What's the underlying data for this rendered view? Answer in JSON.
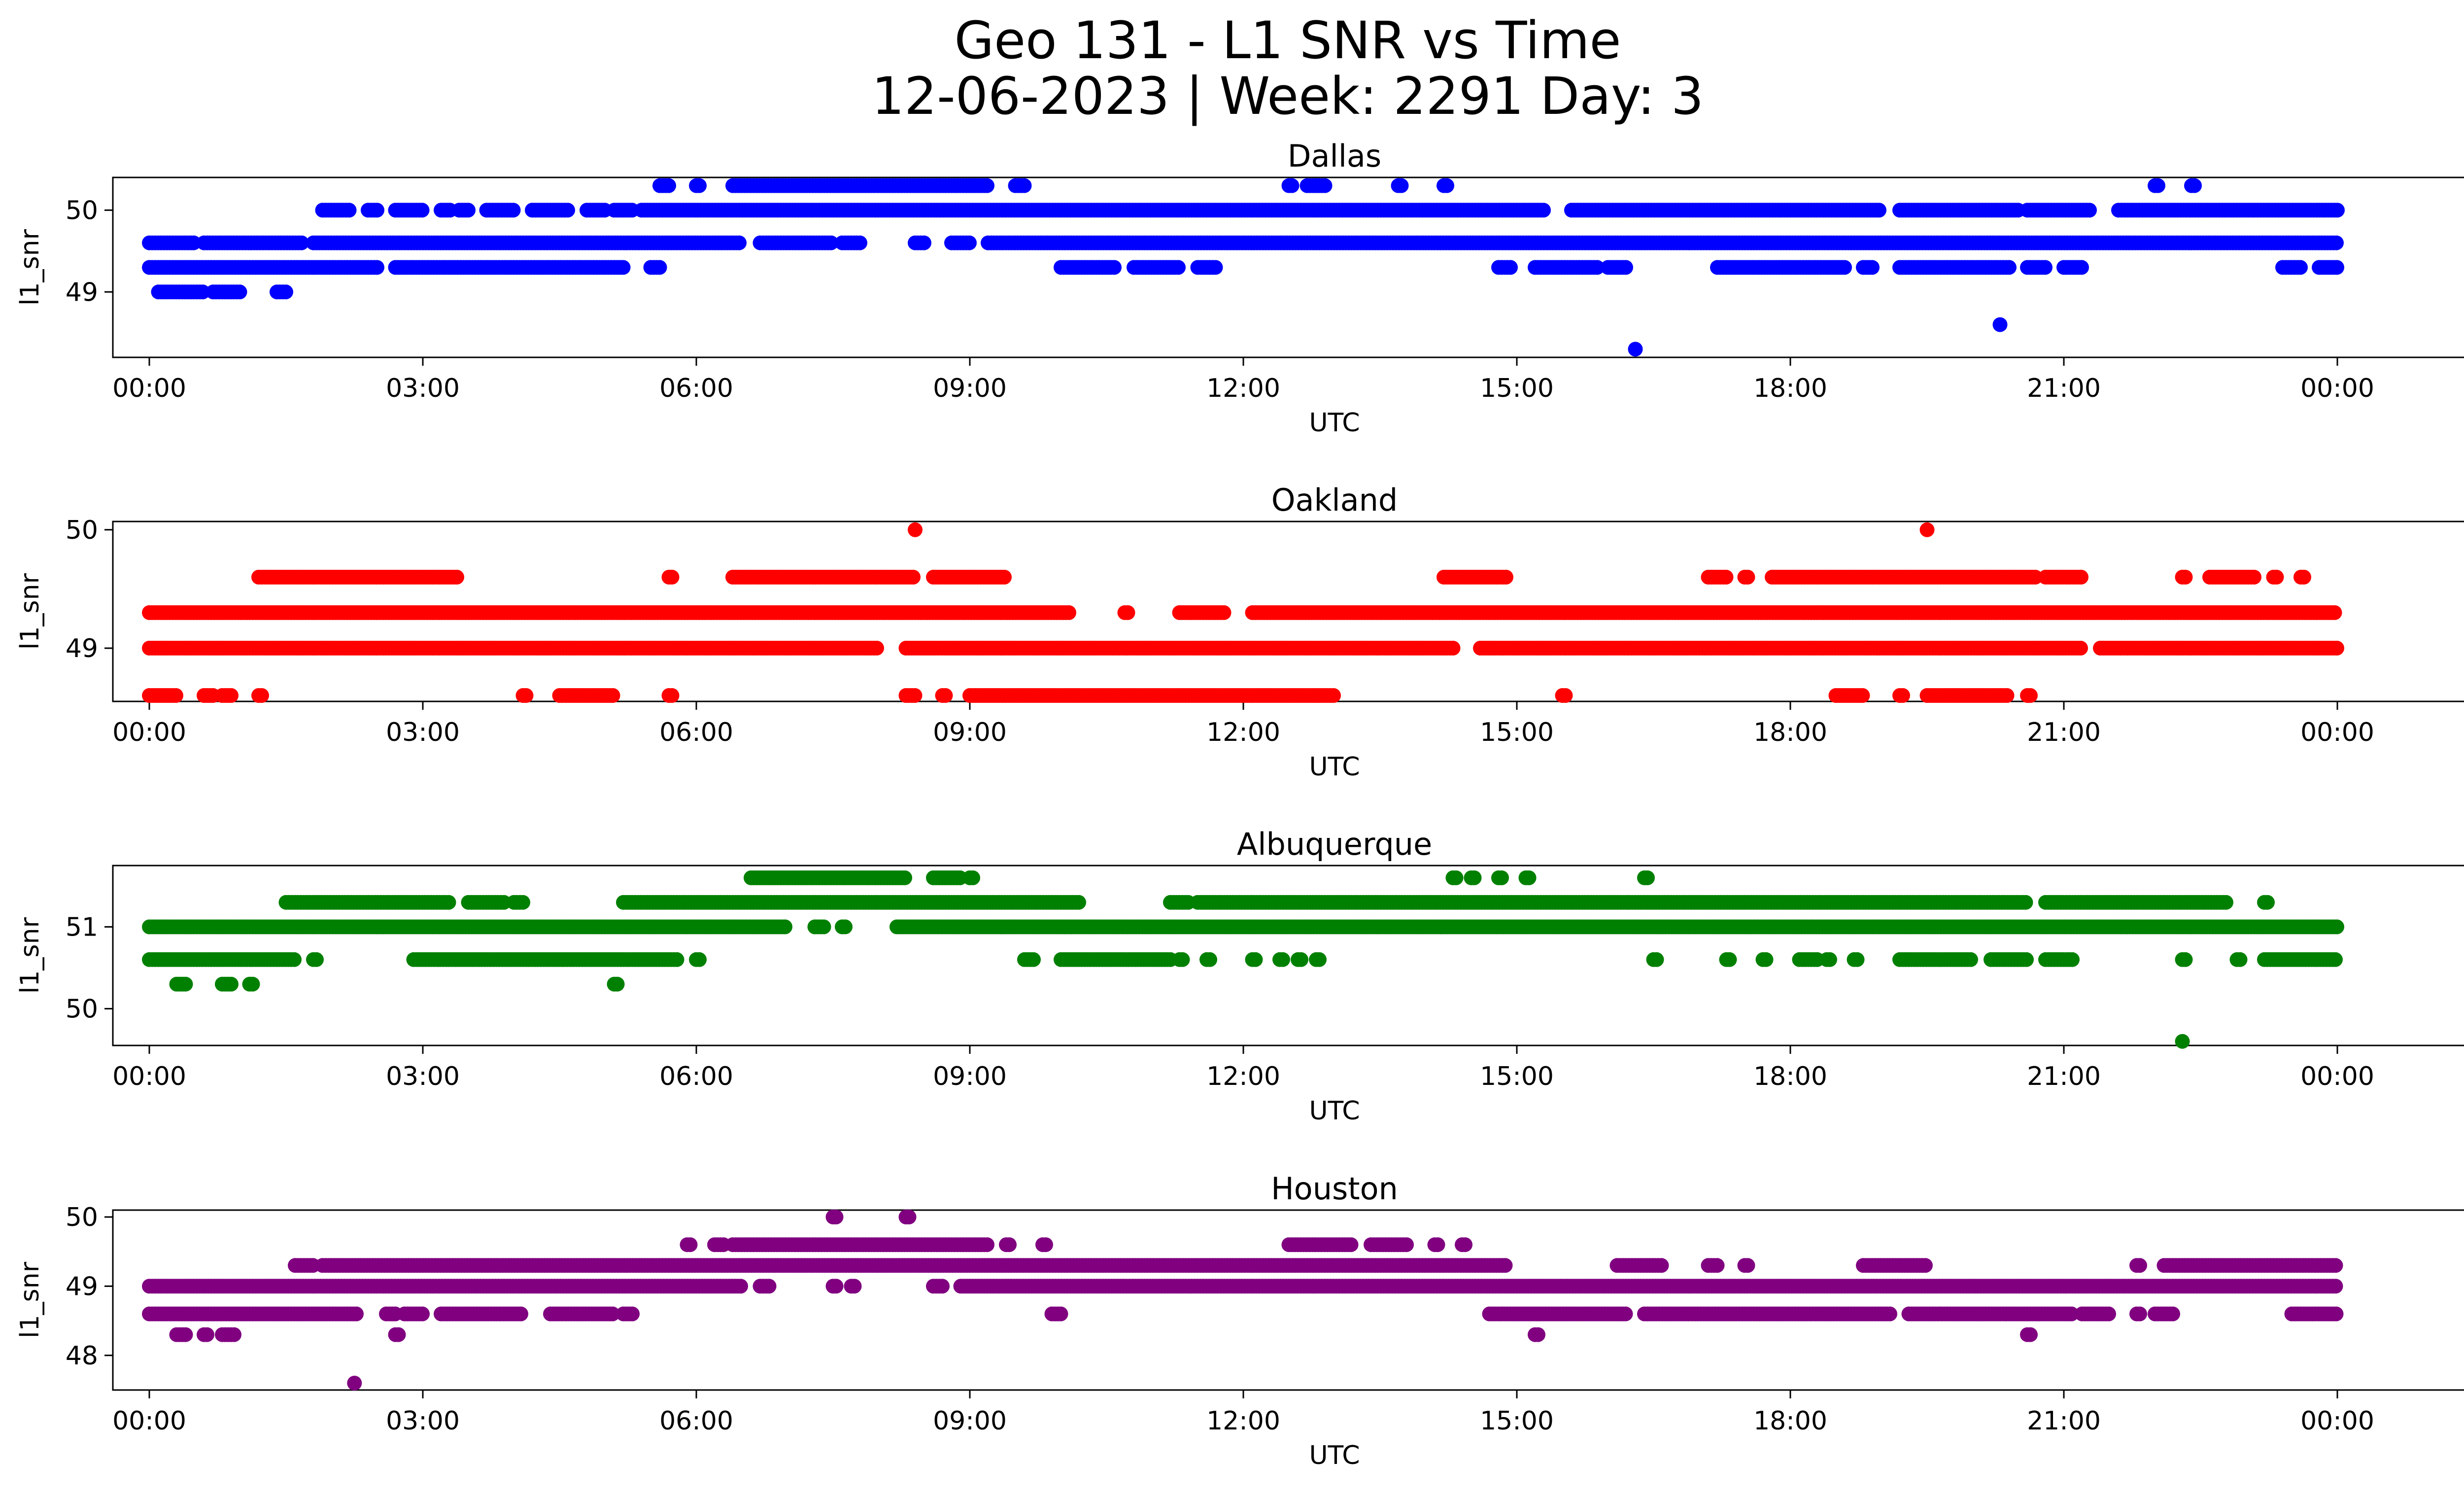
{
  "title": "Geo 131 - L1 SNR vs Time",
  "subtitle": "12-06-2023 | Week: 2291 Day: 3",
  "chart_data": [
    {
      "type": "scatter",
      "title": "Dallas",
      "xlabel": "UTC",
      "ylabel": "l1_snr",
      "color": "#0000ff",
      "xlim": [
        -0.4,
        26.4
      ],
      "ylim": [
        48.2,
        50.4
      ],
      "xticks": [
        "00:00",
        "03:00",
        "06:00",
        "09:00",
        "12:00",
        "15:00",
        "18:00",
        "21:00",
        "00:00"
      ],
      "yticks": [
        49,
        50
      ],
      "bands": [
        {
          "y": 50.3,
          "segments": [
            [
              5.6,
              5.7
            ],
            [
              6.0,
              6.05
            ],
            [
              6.4,
              9.2
            ],
            [
              9.5,
              9.6
            ],
            [
              12.5,
              12.55
            ],
            [
              12.7,
              12.9
            ],
            [
              13.7,
              13.75
            ],
            [
              14.2,
              14.25
            ],
            [
              22.0,
              22.05
            ],
            [
              22.4,
              22.45
            ]
          ]
        },
        {
          "y": 50.0,
          "segments": [
            [
              1.9,
              2.2
            ],
            [
              2.4,
              2.5
            ],
            [
              2.7,
              3.0
            ],
            [
              3.2,
              3.3
            ],
            [
              3.4,
              3.5
            ],
            [
              3.7,
              4.0
            ],
            [
              4.2,
              4.6
            ],
            [
              4.8,
              5.0
            ],
            [
              5.1,
              5.3
            ],
            [
              5.4,
              15.3
            ],
            [
              15.6,
              19.0
            ],
            [
              19.2,
              20.5
            ],
            [
              20.6,
              21.3
            ],
            [
              21.6,
              24.0
            ]
          ]
        },
        {
          "y": 49.6,
          "segments": [
            [
              0.0,
              0.5
            ],
            [
              0.6,
              1.7
            ],
            [
              1.8,
              6.5
            ],
            [
              6.7,
              7.5
            ],
            [
              7.6,
              7.8
            ],
            [
              8.4,
              8.5
            ],
            [
              8.8,
              9.0
            ],
            [
              9.2,
              24.0
            ]
          ]
        },
        {
          "y": 49.3,
          "segments": [
            [
              0.0,
              2.5
            ],
            [
              2.7,
              5.2
            ],
            [
              5.5,
              5.6
            ],
            [
              10.0,
              10.6
            ],
            [
              10.8,
              11.3
            ],
            [
              11.5,
              11.7
            ],
            [
              14.8,
              14.95
            ],
            [
              15.2,
              15.9
            ],
            [
              16.0,
              16.2
            ],
            [
              17.2,
              18.6
            ],
            [
              18.8,
              18.9
            ],
            [
              19.2,
              20.4
            ],
            [
              20.6,
              20.8
            ],
            [
              21.0,
              21.2
            ],
            [
              23.4,
              23.6
            ],
            [
              23.8,
              24.0
            ]
          ]
        },
        {
          "y": 49.0,
          "segments": [
            [
              0.1,
              0.6
            ],
            [
              0.7,
              1.0
            ],
            [
              1.4,
              1.5
            ]
          ]
        }
      ],
      "points": [
        {
          "x": 16.3,
          "y": 48.3
        },
        {
          "x": 20.3,
          "y": 48.6
        }
      ]
    },
    {
      "type": "scatter",
      "title": "Oakland",
      "xlabel": "UTC",
      "ylabel": "l1_snr",
      "color": "#ff0000",
      "xlim": [
        -0.4,
        26.4
      ],
      "ylim": [
        48.55,
        50.07
      ],
      "xticks": [
        "00:00",
        "03:00",
        "06:00",
        "09:00",
        "12:00",
        "15:00",
        "18:00",
        "21:00",
        "00:00"
      ],
      "yticks": [
        49,
        50
      ],
      "bands": [
        {
          "y": 49.6,
          "segments": [
            [
              1.2,
              3.4
            ],
            [
              5.7,
              5.75
            ],
            [
              6.4,
              8.4
            ],
            [
              8.6,
              9.4
            ],
            [
              14.2,
              14.9
            ],
            [
              17.1,
              17.3
            ],
            [
              17.5,
              17.55
            ],
            [
              17.8,
              20.7
            ],
            [
              20.8,
              21.2
            ],
            [
              22.3,
              22.35
            ],
            [
              22.6,
              23.1
            ],
            [
              23.3,
              23.35
            ],
            [
              23.6,
              23.65
            ]
          ]
        },
        {
          "y": 49.3,
          "segments": [
            [
              0.0,
              10.1
            ],
            [
              10.7,
              10.75
            ],
            [
              11.3,
              11.8
            ],
            [
              12.1,
              24.0
            ]
          ]
        },
        {
          "y": 49.0,
          "segments": [
            [
              0.0,
              8.0
            ],
            [
              8.3,
              14.3
            ],
            [
              14.6,
              21.2
            ],
            [
              21.4,
              24.0
            ]
          ]
        },
        {
          "y": 48.6,
          "segments": [
            [
              0.0,
              0.3
            ],
            [
              0.6,
              0.7
            ],
            [
              0.8,
              0.9
            ],
            [
              1.2,
              1.25
            ],
            [
              4.1,
              4.15
            ],
            [
              4.5,
              5.1
            ],
            [
              5.7,
              5.75
            ],
            [
              8.3,
              8.4
            ],
            [
              8.7,
              8.75
            ],
            [
              9.0,
              13.0
            ],
            [
              15.5,
              15.55
            ],
            [
              18.5,
              18.8
            ],
            [
              19.2,
              19.25
            ],
            [
              19.5,
              20.4
            ],
            [
              20.6,
              20.65
            ]
          ]
        }
      ],
      "points": [
        {
          "x": 8.4,
          "y": 50.0
        },
        {
          "x": 19.5,
          "y": 50.0
        }
      ]
    },
    {
      "type": "scatter",
      "title": "Albuquerque",
      "xlabel": "UTC",
      "ylabel": "l1_snr",
      "color": "#008000",
      "xlim": [
        -0.4,
        26.4
      ],
      "ylim": [
        49.55,
        51.75
      ],
      "xticks": [
        "00:00",
        "03:00",
        "06:00",
        "09:00",
        "12:00",
        "15:00",
        "18:00",
        "21:00",
        "00:00"
      ],
      "yticks": [
        50,
        51
      ],
      "bands": [
        {
          "y": 51.6,
          "segments": [
            [
              6.6,
              8.3
            ],
            [
              8.6,
              8.9
            ],
            [
              9.0,
              9.05
            ],
            [
              14.3,
              14.35
            ],
            [
              14.5,
              14.55
            ],
            [
              14.8,
              14.85
            ],
            [
              15.1,
              15.15
            ],
            [
              16.4,
              16.45
            ]
          ]
        },
        {
          "y": 51.3,
          "segments": [
            [
              1.5,
              3.3
            ],
            [
              3.5,
              3.9
            ],
            [
              4.0,
              4.1
            ],
            [
              5.2,
              10.2
            ],
            [
              11.2,
              11.4
            ],
            [
              11.5,
              20.6
            ],
            [
              20.8,
              22.8
            ],
            [
              23.2,
              23.25
            ]
          ]
        },
        {
          "y": 51.0,
          "segments": [
            [
              0.0,
              7.0
            ],
            [
              7.3,
              7.4
            ],
            [
              7.6,
              7.65
            ],
            [
              8.2,
              24.0
            ]
          ]
        },
        {
          "y": 50.6,
          "segments": [
            [
              0.0,
              1.6
            ],
            [
              1.8,
              1.85
            ],
            [
              2.9,
              5.8
            ],
            [
              6.0,
              6.05
            ],
            [
              9.6,
              9.7
            ],
            [
              10.0,
              11.2
            ],
            [
              11.3,
              11.35
            ],
            [
              11.6,
              11.65
            ],
            [
              12.1,
              12.15
            ],
            [
              12.4,
              12.45
            ],
            [
              12.6,
              12.65
            ],
            [
              12.8,
              12.85
            ],
            [
              16.5,
              16.55
            ],
            [
              17.3,
              17.35
            ],
            [
              17.7,
              17.75
            ],
            [
              18.1,
              18.3
            ],
            [
              18.4,
              18.45
            ],
            [
              18.7,
              18.75
            ],
            [
              19.2,
              20.0
            ],
            [
              20.2,
              20.6
            ],
            [
              20.8,
              21.1
            ],
            [
              22.3,
              22.35
            ],
            [
              22.9,
              22.95
            ],
            [
              23.2,
              24.0
            ]
          ]
        },
        {
          "y": 50.3,
          "segments": [
            [
              0.3,
              0.4
            ],
            [
              0.8,
              0.9
            ],
            [
              1.1,
              1.15
            ],
            [
              5.1,
              5.15
            ]
          ]
        }
      ],
      "points": [
        {
          "x": 22.3,
          "y": 49.6
        }
      ]
    },
    {
      "type": "scatter",
      "title": "Houston",
      "xlabel": "UTC",
      "ylabel": "l1_snr",
      "color": "#800080",
      "xlim": [
        -0.4,
        26.4
      ],
      "ylim": [
        47.5,
        50.1
      ],
      "xticks": [
        "00:00",
        "03:00",
        "06:00",
        "09:00",
        "12:00",
        "15:00",
        "18:00",
        "21:00",
        "00:00"
      ],
      "yticks": [
        48,
        49,
        50
      ],
      "bands": [
        {
          "y": 50.0,
          "segments": [
            [
              7.5,
              7.55
            ],
            [
              8.3,
              8.35
            ]
          ]
        },
        {
          "y": 49.6,
          "segments": [
            [
              5.9,
              5.95
            ],
            [
              6.2,
              6.3
            ],
            [
              6.4,
              9.2
            ],
            [
              9.4,
              9.45
            ],
            [
              9.8,
              9.85
            ],
            [
              12.5,
              13.2
            ],
            [
              13.4,
              13.8
            ],
            [
              14.1,
              14.15
            ],
            [
              14.4,
              14.45
            ]
          ]
        },
        {
          "y": 49.3,
          "segments": [
            [
              1.6,
              1.8
            ],
            [
              1.9,
              14.9
            ],
            [
              16.1,
              16.6
            ],
            [
              17.1,
              17.2
            ],
            [
              17.5,
              17.55
            ],
            [
              18.8,
              19.5
            ],
            [
              21.8,
              21.85
            ],
            [
              22.1,
              24.0
            ]
          ]
        },
        {
          "y": 49.0,
          "segments": [
            [
              0.0,
              6.5
            ],
            [
              6.7,
              6.8
            ],
            [
              7.5,
              7.55
            ],
            [
              7.7,
              7.75
            ],
            [
              8.6,
              8.7
            ],
            [
              8.9,
              24.0
            ]
          ]
        },
        {
          "y": 48.6,
          "segments": [
            [
              0.0,
              2.3
            ],
            [
              2.6,
              2.7
            ],
            [
              2.8,
              3.0
            ],
            [
              3.2,
              4.1
            ],
            [
              4.4,
              5.1
            ],
            [
              5.2,
              5.3
            ],
            [
              9.9,
              10.0
            ],
            [
              14.7,
              16.2
            ],
            [
              16.4,
              19.1
            ],
            [
              19.3,
              21.1
            ],
            [
              21.2,
              21.5
            ],
            [
              21.8,
              21.85
            ],
            [
              22.0,
              22.2
            ],
            [
              23.5,
              24.0
            ]
          ]
        },
        {
          "y": 48.3,
          "segments": [
            [
              0.3,
              0.4
            ],
            [
              0.6,
              0.65
            ],
            [
              0.8,
              0.95
            ],
            [
              2.7,
              2.75
            ],
            [
              15.2,
              15.25
            ],
            [
              20.6,
              20.65
            ]
          ]
        }
      ],
      "points": [
        {
          "x": 2.25,
          "y": 47.6
        }
      ]
    }
  ]
}
